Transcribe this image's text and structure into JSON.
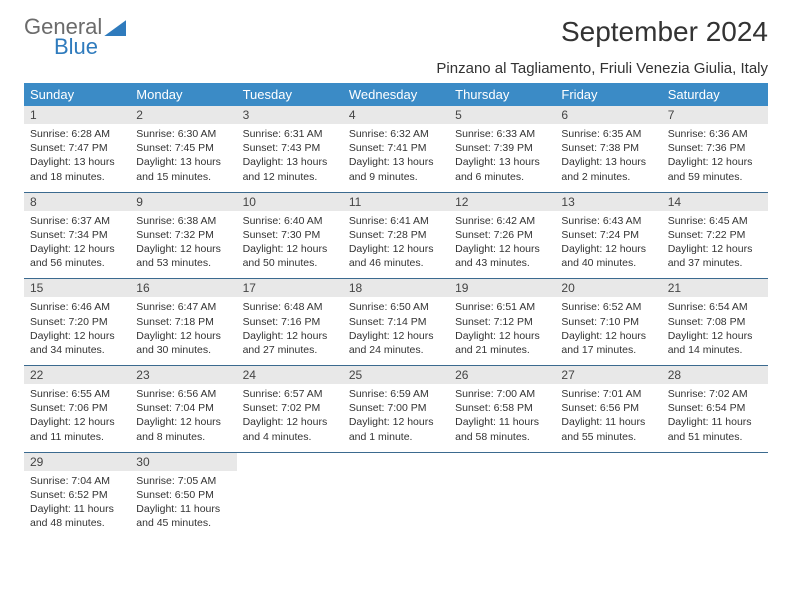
{
  "logo": {
    "word1": "General",
    "word2": "Blue"
  },
  "title": "September 2024",
  "subtitle": "Pinzano al Tagliamento, Friuli Venezia Giulia, Italy",
  "colors": {
    "header_bg": "#3b8bc6",
    "header_text": "#ffffff",
    "daynum_bg": "#e8e8e8",
    "cell_border": "#3b6a8f",
    "logo_blue": "#2f7bbd",
    "logo_gray": "#6b6b6b"
  },
  "weekdays": [
    "Sunday",
    "Monday",
    "Tuesday",
    "Wednesday",
    "Thursday",
    "Friday",
    "Saturday"
  ],
  "weeks": [
    [
      {
        "n": "1",
        "sr": "6:28 AM",
        "ss": "7:47 PM",
        "dl": "13 hours and 18 minutes."
      },
      {
        "n": "2",
        "sr": "6:30 AM",
        "ss": "7:45 PM",
        "dl": "13 hours and 15 minutes."
      },
      {
        "n": "3",
        "sr": "6:31 AM",
        "ss": "7:43 PM",
        "dl": "13 hours and 12 minutes."
      },
      {
        "n": "4",
        "sr": "6:32 AM",
        "ss": "7:41 PM",
        "dl": "13 hours and 9 minutes."
      },
      {
        "n": "5",
        "sr": "6:33 AM",
        "ss": "7:39 PM",
        "dl": "13 hours and 6 minutes."
      },
      {
        "n": "6",
        "sr": "6:35 AM",
        "ss": "7:38 PM",
        "dl": "13 hours and 2 minutes."
      },
      {
        "n": "7",
        "sr": "6:36 AM",
        "ss": "7:36 PM",
        "dl": "12 hours and 59 minutes."
      }
    ],
    [
      {
        "n": "8",
        "sr": "6:37 AM",
        "ss": "7:34 PM",
        "dl": "12 hours and 56 minutes."
      },
      {
        "n": "9",
        "sr": "6:38 AM",
        "ss": "7:32 PM",
        "dl": "12 hours and 53 minutes."
      },
      {
        "n": "10",
        "sr": "6:40 AM",
        "ss": "7:30 PM",
        "dl": "12 hours and 50 minutes."
      },
      {
        "n": "11",
        "sr": "6:41 AM",
        "ss": "7:28 PM",
        "dl": "12 hours and 46 minutes."
      },
      {
        "n": "12",
        "sr": "6:42 AM",
        "ss": "7:26 PM",
        "dl": "12 hours and 43 minutes."
      },
      {
        "n": "13",
        "sr": "6:43 AM",
        "ss": "7:24 PM",
        "dl": "12 hours and 40 minutes."
      },
      {
        "n": "14",
        "sr": "6:45 AM",
        "ss": "7:22 PM",
        "dl": "12 hours and 37 minutes."
      }
    ],
    [
      {
        "n": "15",
        "sr": "6:46 AM",
        "ss": "7:20 PM",
        "dl": "12 hours and 34 minutes."
      },
      {
        "n": "16",
        "sr": "6:47 AM",
        "ss": "7:18 PM",
        "dl": "12 hours and 30 minutes."
      },
      {
        "n": "17",
        "sr": "6:48 AM",
        "ss": "7:16 PM",
        "dl": "12 hours and 27 minutes."
      },
      {
        "n": "18",
        "sr": "6:50 AM",
        "ss": "7:14 PM",
        "dl": "12 hours and 24 minutes."
      },
      {
        "n": "19",
        "sr": "6:51 AM",
        "ss": "7:12 PM",
        "dl": "12 hours and 21 minutes."
      },
      {
        "n": "20",
        "sr": "6:52 AM",
        "ss": "7:10 PM",
        "dl": "12 hours and 17 minutes."
      },
      {
        "n": "21",
        "sr": "6:54 AM",
        "ss": "7:08 PM",
        "dl": "12 hours and 14 minutes."
      }
    ],
    [
      {
        "n": "22",
        "sr": "6:55 AM",
        "ss": "7:06 PM",
        "dl": "12 hours and 11 minutes."
      },
      {
        "n": "23",
        "sr": "6:56 AM",
        "ss": "7:04 PM",
        "dl": "12 hours and 8 minutes."
      },
      {
        "n": "24",
        "sr": "6:57 AM",
        "ss": "7:02 PM",
        "dl": "12 hours and 4 minutes."
      },
      {
        "n": "25",
        "sr": "6:59 AM",
        "ss": "7:00 PM",
        "dl": "12 hours and 1 minute."
      },
      {
        "n": "26",
        "sr": "7:00 AM",
        "ss": "6:58 PM",
        "dl": "11 hours and 58 minutes."
      },
      {
        "n": "27",
        "sr": "7:01 AM",
        "ss": "6:56 PM",
        "dl": "11 hours and 55 minutes."
      },
      {
        "n": "28",
        "sr": "7:02 AM",
        "ss": "6:54 PM",
        "dl": "11 hours and 51 minutes."
      }
    ],
    [
      {
        "n": "29",
        "sr": "7:04 AM",
        "ss": "6:52 PM",
        "dl": "11 hours and 48 minutes."
      },
      {
        "n": "30",
        "sr": "7:05 AM",
        "ss": "6:50 PM",
        "dl": "11 hours and 45 minutes."
      },
      null,
      null,
      null,
      null,
      null
    ]
  ],
  "labels": {
    "sunrise": "Sunrise:",
    "sunset": "Sunset:",
    "daylight": "Daylight:"
  }
}
